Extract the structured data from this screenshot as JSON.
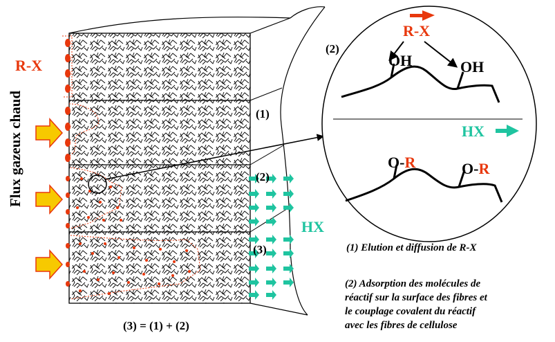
{
  "labels": {
    "gas_flow": "Flux gazeux chaud",
    "reagent_left": "R-X",
    "step1": "(1)",
    "step2": "(2)",
    "step3": "(3)",
    "hx_block": "HX",
    "equation": "(3) = (1) + (2)"
  },
  "zoom": {
    "label": "(2)",
    "reagent": "R-X",
    "oh_left": "OH",
    "oh_right": "OH",
    "hx": "HX",
    "o_left": "O-",
    "r_left": "R",
    "o_right": "O-",
    "r_right": "R"
  },
  "notes": {
    "note1": "(1) Elution et diffusion de R-X",
    "note2_line1": "(2) Adsorption des molécules de",
    "note2_line2": "réactif sur la surface des fibres et",
    "note2_line3": "le couplage covalent  du réactif",
    "note2_line4": "avec les fibres de cellulose"
  },
  "colors": {
    "reagent": "#e8380d",
    "hx": "#1fc4a0",
    "arrow_fill": "#f7c900",
    "arrow_stroke": "#e8380d",
    "ink": "#000000"
  }
}
